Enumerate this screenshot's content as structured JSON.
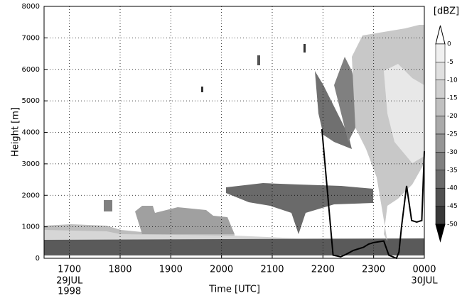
{
  "chart_data": {
    "type": "line",
    "xlabel": "Time [UTC]",
    "ylabel": "Height [m]",
    "xlim": [
      16.5,
      24
    ],
    "ylim": [
      0,
      8000
    ],
    "xticks": [
      {
        "value": 17,
        "label": "1700"
      },
      {
        "value": 18,
        "label": "1800"
      },
      {
        "value": 19,
        "label": "1900"
      },
      {
        "value": 20,
        "label": "2000"
      },
      {
        "value": 21,
        "label": "2100"
      },
      {
        "value": 22,
        "label": "2200"
      },
      {
        "value": 23,
        "label": "2300"
      },
      {
        "value": 24,
        "label": "0000"
      }
    ],
    "yticks": [
      0,
      1000,
      2000,
      3000,
      4000,
      5000,
      6000,
      7000,
      8000
    ],
    "date_labels": [
      {
        "x": 17,
        "lines": [
          "29JUL",
          "1998"
        ]
      },
      {
        "x": 24,
        "lines": [
          "30JUL"
        ]
      }
    ],
    "grid": true,
    "series": [
      {
        "color": "#000000",
        "x": [
          21.98,
          22.2,
          22.35,
          22.45,
          22.6,
          22.8,
          22.9,
          23.0,
          23.2,
          23.3,
          23.45,
          23.5,
          23.55,
          23.65,
          23.75,
          23.85,
          23.95,
          24.0
        ],
        "values": [
          4100,
          100,
          50,
          120,
          250,
          350,
          450,
          500,
          550,
          100,
          0,
          200,
          1000,
          2300,
          1200,
          1150,
          1200,
          3400
        ]
      }
    ],
    "colorbar": {
      "title": "[dBZ]",
      "ticks": [
        0,
        -5,
        -10,
        -15,
        -20,
        -25,
        -30,
        -35,
        -40,
        -45,
        -50
      ],
      "colors": [
        "#ffffff",
        "#f0f0f0",
        "#e0e0e0",
        "#d0d0d0",
        "#c0c0c0",
        "#aaaaaa",
        "#959595",
        "#808080",
        "#6a6a6a",
        "#505050",
        "#383838",
        "#000000"
      ]
    }
  }
}
